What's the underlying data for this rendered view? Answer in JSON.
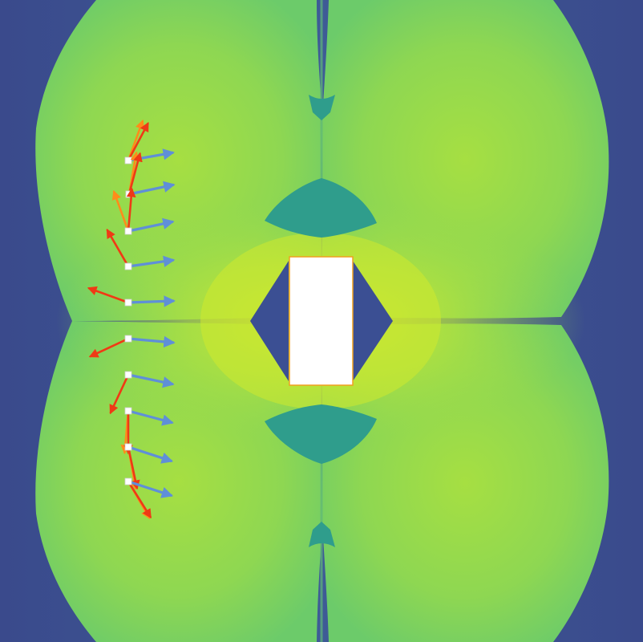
{
  "figure": {
    "colors": {
      "background_dark": "#3b5592",
      "background_deep": "#3a4a8c",
      "field_outer": "#6fcb68",
      "field_mid": "#86d55a",
      "field_bright": "#b6e43a",
      "field_peak": "#d2ea2a",
      "notch_teal": "#2f9d8c",
      "obstacle_fill": "#ffffff",
      "obstacle_border": "#f0a020",
      "marker_fill": "#ffffff",
      "arrow_blue": "#5f8fd8",
      "arrow_orange": "#ff8c1a",
      "arrow_red": "#ee3a16"
    },
    "probes": [
      {
        "id": 1,
        "blue_heading_deg": -10,
        "orange_heading_deg": -70,
        "red_heading_deg": -62
      },
      {
        "id": 2,
        "blue_heading_deg": -12,
        "orange_heading_deg": -80,
        "red_heading_deg": -75
      },
      {
        "id": 3,
        "blue_heading_deg": -12,
        "orange_heading_deg": -110,
        "red_heading_deg": -85
      },
      {
        "id": 4,
        "blue_heading_deg": -8,
        "orange_heading_deg": -120,
        "red_heading_deg": -120
      },
      {
        "id": 5,
        "blue_heading_deg": -2,
        "orange_heading_deg": -160,
        "red_heading_deg": -160
      },
      {
        "id": 6,
        "blue_heading_deg": 5,
        "orange_heading_deg": 155,
        "red_heading_deg": 155
      },
      {
        "id": 7,
        "blue_heading_deg": 12,
        "orange_heading_deg": 115,
        "red_heading_deg": 115
      },
      {
        "id": 8,
        "blue_heading_deg": 15,
        "orange_heading_deg": 95,
        "red_heading_deg": 90
      },
      {
        "id": 9,
        "blue_heading_deg": 18,
        "orange_heading_deg": 80,
        "red_heading_deg": 78
      },
      {
        "id": 10,
        "blue_heading_deg": 18,
        "orange_heading_deg": 60,
        "red_heading_deg": 58
      }
    ]
  }
}
